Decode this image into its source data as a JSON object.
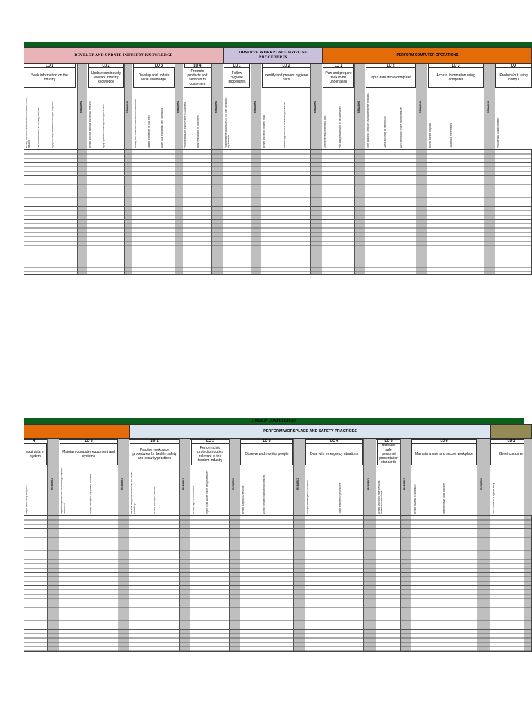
{
  "colors": {
    "green": "#0b5e1c",
    "pink": "#e8b4b8",
    "lavender": "#c9c1dc",
    "orange": "#e36c09",
    "light_blue": "#dbe5f1",
    "olive": "#948a54",
    "gray_column": "#bfbfbf"
  },
  "top": {
    "bands": [
      {
        "label": "DEVELOP AND UPDATE INDUSTRY KNOWLEDGE"
      },
      {
        "label": "OBSERVE WORKPLACE HYGEINE PROCEDURES"
      },
      {
        "label": "PERFORM COMPUTER OPERATIONS"
      }
    ],
    "lo_labels": [
      "LO 1",
      "LO 2",
      "LO 3",
      "LO 4",
      "LO 1",
      "LO 2",
      "LO 1",
      "LO 2",
      "LO 3",
      "LO"
    ],
    "lo_titles": [
      "Seek information on the industry",
      "Update continously relevant industry knowledge",
      "Develop and update local knowledge",
      "Promote products and services to customers",
      "Follow hygiene procedures",
      "Identify and prevent hygiene risks",
      "Plan and prepare task to be undertaken",
      "Input data into a computer",
      "Access information using computer",
      "Produce/out using compu"
    ],
    "remarks": "REMARKS",
    "criteria": [
      "Identify and access sources of information on the industry",
      "Obtain information on industry features",
      "Apply industry information in day-to-day work",
      "Identify and use informal and formal research",
      "Apply updated knowledge to improve work",
      "Identify and access sources of local information",
      "Update knowledge of local area",
      "Share local knowledge with colleagues",
      "Promote products and services to customers",
      "Apply selling skills to customers",
      "Follow hygiene procedures in line with workplace requirements",
      "Identify and report hygiene risks",
      "Prevent hygiene risks in line with procedures",
      "Determine requirements of task",
      "Plan and prepare work to be undertaken",
      "Enter data into computer using appropriate programs",
      "Check accuracy of information",
      "Save information in line with procedures",
      "Access correct program",
      "Locate and retrieve files",
      "Produce data using computer"
    ]
  },
  "bottom": {
    "green_title": "COMMON COMPETENCIES",
    "bands": [
      {
        "label": "PERFORM WORKPLACE AND SAFETY PRACTICES"
      }
    ],
    "lo_labels": [
      "4",
      "LO 5",
      "LO 1",
      "LO 2",
      "LO 3",
      "LO 4",
      "LO 5",
      "LO 6",
      "LO 1"
    ],
    "lo_titles": [
      "nput data er system",
      "Maintain computer equipment and systems",
      "Practice workplace procedures for health, safety and security practices",
      "Perform child protection duties relevant to the tourism industry",
      "Observe and monitor people",
      "Deal with emergency situations",
      "Maintain safe personal presentation standards",
      "Maintain a safe and secure workplace",
      "Greet customer"
    ],
    "remarks": "REMARKS",
    "criteria": [
      "Output data using computer",
      "Implement procedures for cleaning computer equipment",
      "Identify and report equipment problems",
      "Practice workplace procedures for health and safety",
      "Identify and report hazards",
      "Identify signs of child abuse",
      "Report child abuse in line with procedures",
      "Identify suspicious behavior",
      "Monitor people in line with procedures",
      "Recognize emergency situations",
      "Follow emergency procedures",
      "Identify and follow safe personal presentation standards",
      "Identify hazards in workplace",
      "Implement safe work practices",
      "Greet customers appropriately"
    ]
  }
}
